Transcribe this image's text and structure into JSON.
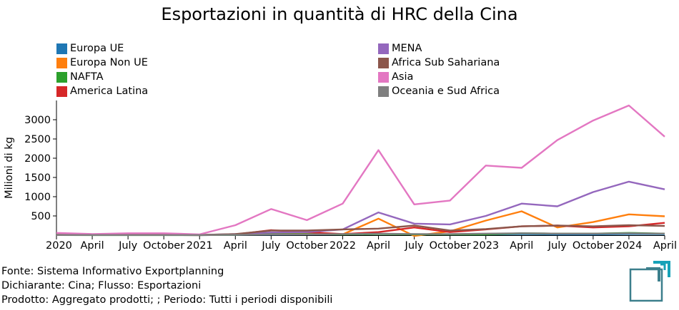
{
  "chart_data": {
    "type": "line",
    "title": "Esportazioni in quantità di HRC della Cina",
    "ylabel": "Milioni di kg",
    "ylim": [
      0,
      3500
    ],
    "yticks": [
      500,
      1000,
      1500,
      2000,
      2500,
      3000
    ],
    "x_tick_labels": [
      "2020",
      "April",
      "July",
      "October",
      "2021",
      "April",
      "July",
      "October",
      "2022",
      "April",
      "July",
      "October",
      "2023",
      "April",
      "July",
      "October",
      "2024",
      "April"
    ],
    "x": [
      "2020-01",
      "2020-04",
      "2020-07",
      "2020-10",
      "2021-01",
      "2021-04",
      "2021-07",
      "2021-10",
      "2022-01",
      "2022-04",
      "2022-07",
      "2022-10",
      "2023-01",
      "2023-04",
      "2023-07",
      "2023-10",
      "2024-01",
      "2024-04"
    ],
    "legend_position": "top",
    "series": [
      {
        "name": "Europa UE",
        "color": "#1f77b4",
        "values": [
          5,
          3,
          4,
          3,
          2,
          10,
          15,
          20,
          20,
          30,
          25,
          20,
          20,
          25,
          20,
          20,
          30,
          25
        ]
      },
      {
        "name": "Europa Non UE",
        "color": "#ff7f0e",
        "values": [
          10,
          5,
          5,
          5,
          5,
          20,
          60,
          50,
          20,
          430,
          -20,
          100,
          380,
          620,
          200,
          340,
          540,
          490
        ]
      },
      {
        "name": "NAFTA",
        "color": "#2ca02c",
        "values": [
          3,
          2,
          2,
          2,
          2,
          10,
          30,
          30,
          20,
          30,
          20,
          20,
          20,
          50,
          40,
          40,
          60,
          40
        ]
      },
      {
        "name": "America Latina",
        "color": "#d62728",
        "values": [
          5,
          3,
          3,
          3,
          2,
          20,
          130,
          80,
          30,
          80,
          200,
          80,
          150,
          230,
          250,
          200,
          230,
          320
        ]
      },
      {
        "name": "MENA",
        "color": "#9467bd",
        "values": [
          10,
          5,
          5,
          5,
          5,
          30,
          70,
          80,
          150,
          590,
          300,
          280,
          500,
          820,
          750,
          1120,
          1390,
          1190
        ]
      },
      {
        "name": "Africa Sub Sahariana",
        "color": "#8c564b",
        "values": [
          10,
          5,
          5,
          5,
          5,
          30,
          120,
          120,
          150,
          170,
          250,
          120,
          160,
          230,
          250,
          230,
          260,
          240
        ]
      },
      {
        "name": "Asia",
        "color": "#e377c2",
        "values": [
          60,
          30,
          50,
          50,
          20,
          260,
          680,
          390,
          820,
          2210,
          800,
          900,
          1810,
          1750,
          2470,
          2980,
          3370,
          2560
        ]
      },
      {
        "name": "Oceania e Sud Africa",
        "color": "#7f7f7f",
        "values": [
          5,
          3,
          3,
          3,
          3,
          10,
          20,
          20,
          30,
          40,
          30,
          30,
          40,
          50,
          40,
          40,
          50,
          40
        ]
      }
    ]
  },
  "footer": {
    "line1": "Fonte: Sistema Informativo Exportplanning",
    "line2": "Dichiarante: Cina; Flusso: Esportazioni",
    "line3": "Prodotto: Aggregato prodotti; ; Periodo: Tutti i periodi disponibili"
  },
  "logo": {
    "icon": "exportplanning-logo-icon",
    "colors": [
      "#3c7f8c",
      "#17a2b8"
    ]
  }
}
